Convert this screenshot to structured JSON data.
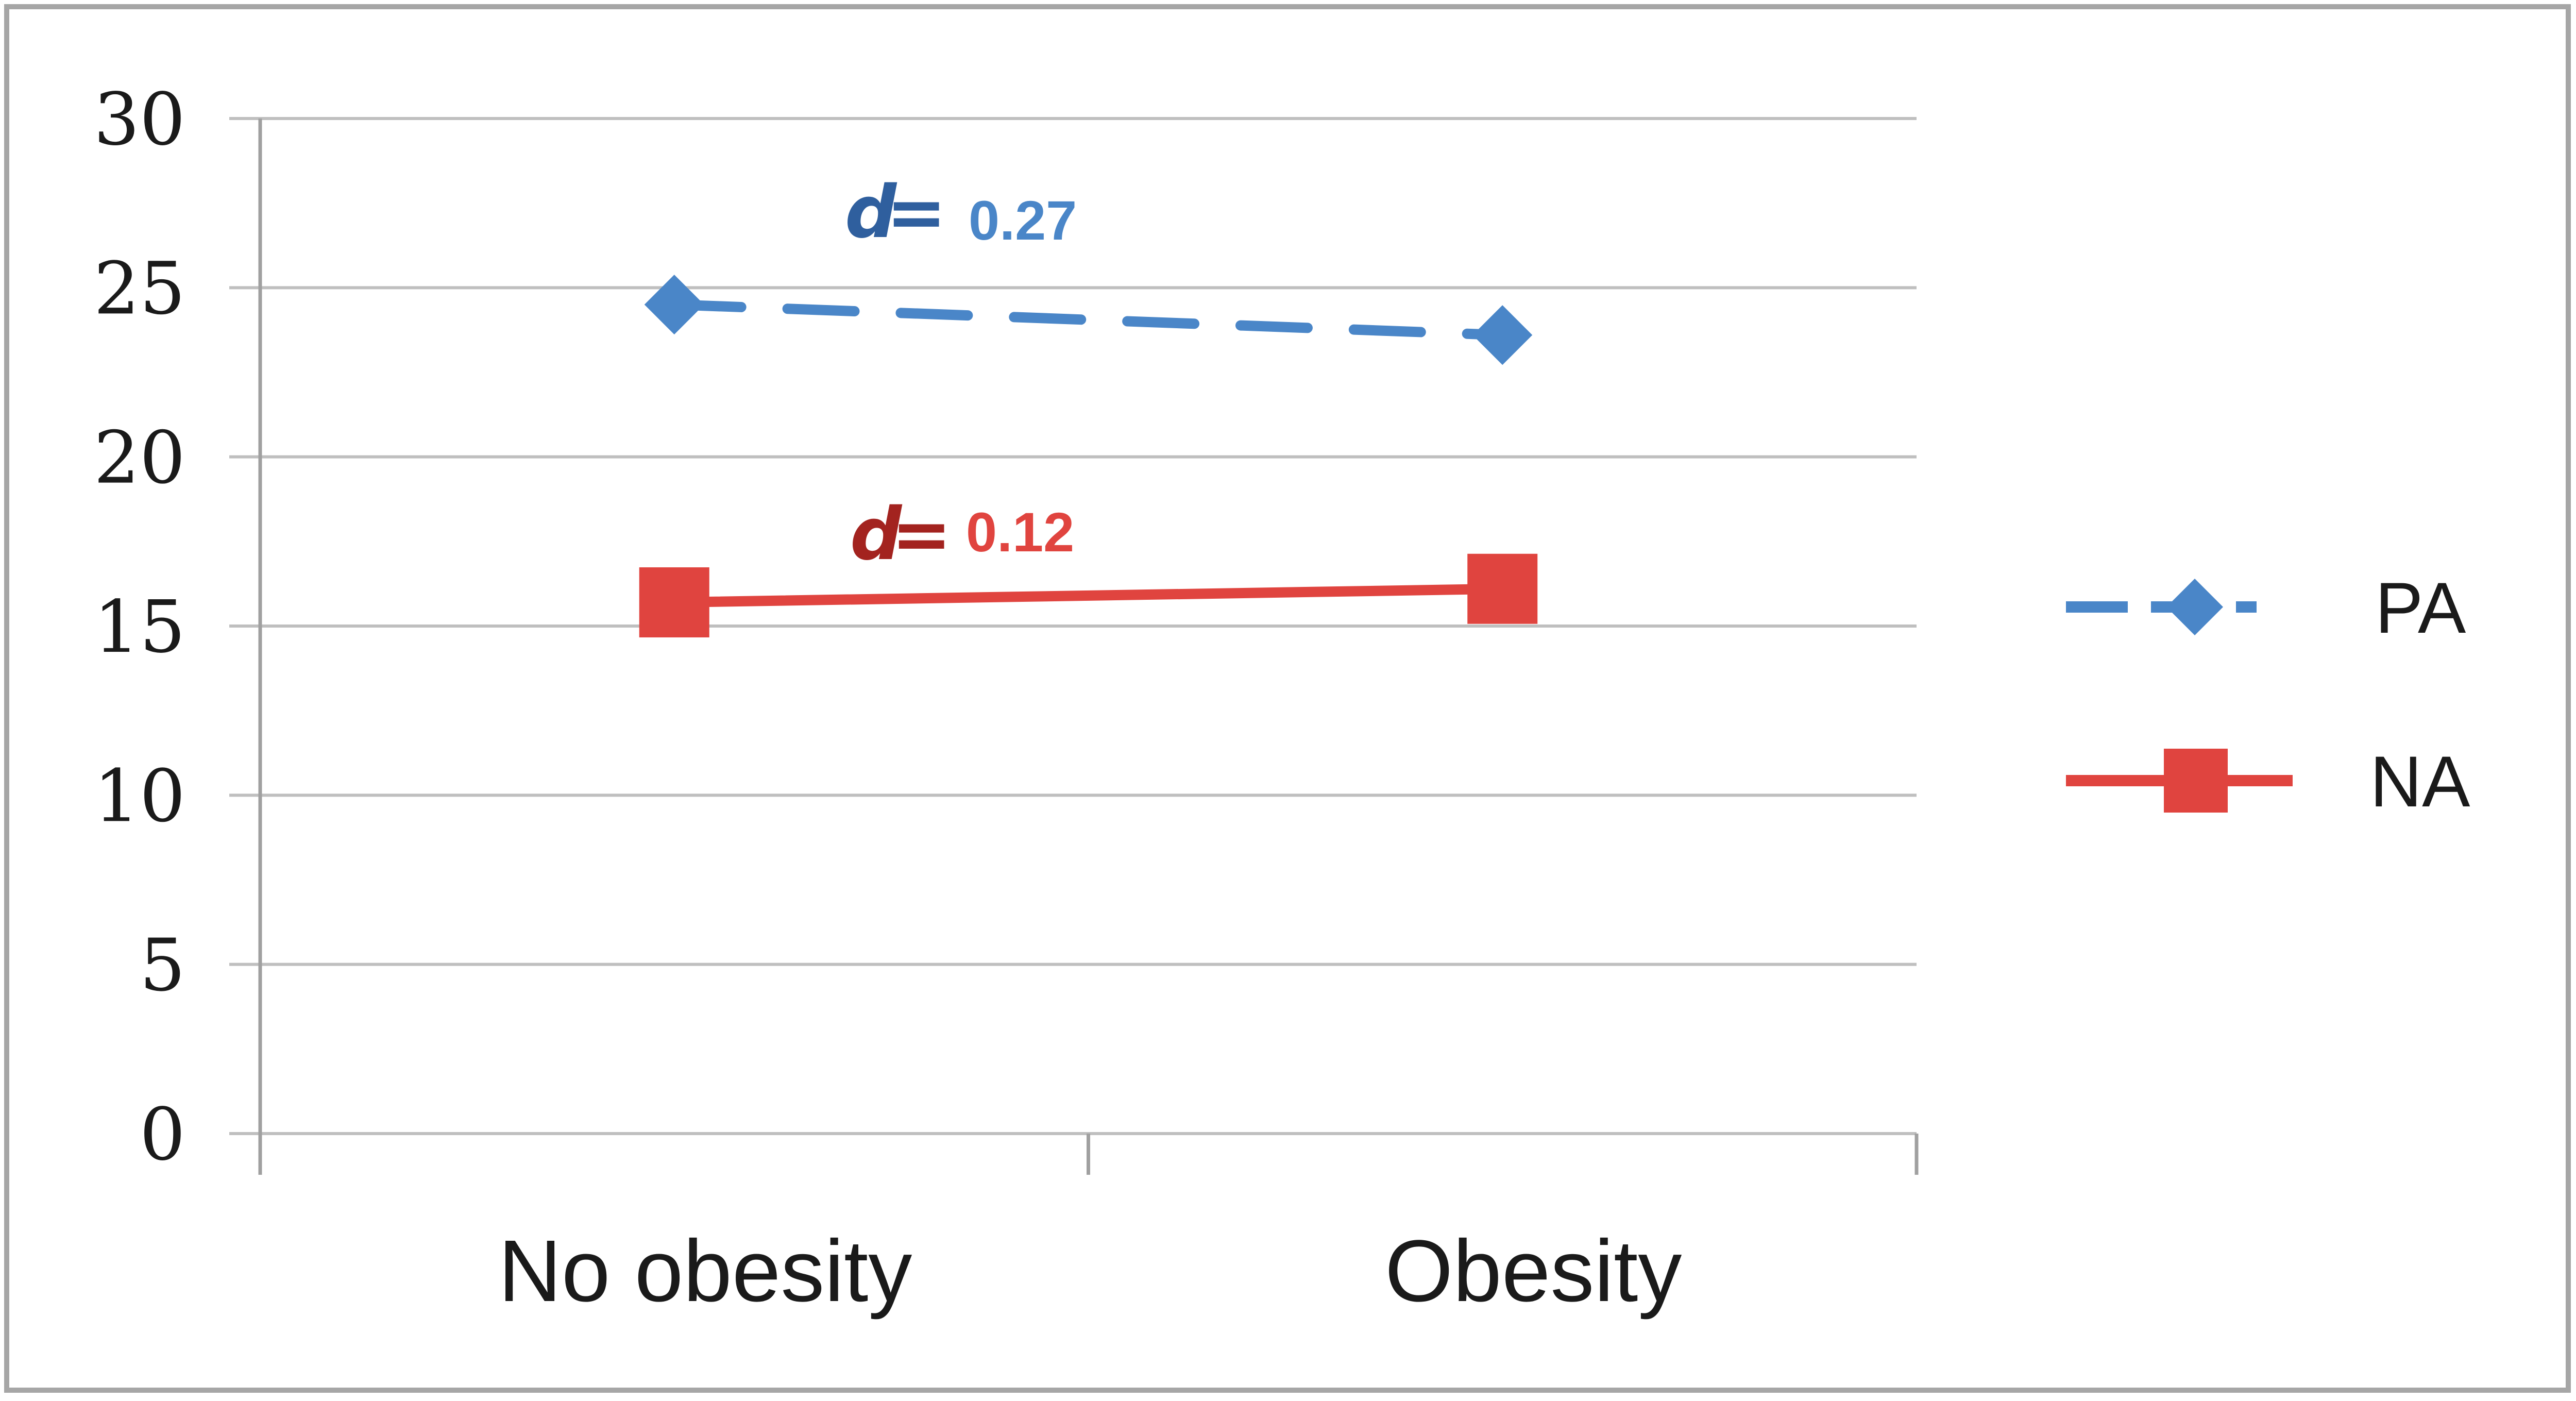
{
  "colors": {
    "pa": "#4a86c8",
    "na": "#e0443f",
    "grid": "#bfbfbf",
    "axis": "#a0a0a0",
    "frame": "#a6a6a6"
  },
  "chart_data": {
    "type": "line",
    "categories": [
      "No obesity",
      "Obesity"
    ],
    "series": [
      {
        "name": "PA",
        "values": [
          24.5,
          23.6
        ],
        "style": "dashed",
        "marker": "diamond",
        "color": "#4a86c8"
      },
      {
        "name": "NA",
        "values": [
          15.7,
          16.1
        ],
        "style": "solid",
        "marker": "square",
        "color": "#e0443f"
      }
    ],
    "ylim": [
      0,
      30
    ],
    "yticks": [
      "0",
      "5",
      "10",
      "15",
      "20",
      "25",
      "30"
    ],
    "grid": true,
    "legend_position": "right",
    "annotations": [
      {
        "series": "PA",
        "d_symbol": "d",
        "equals": "=",
        "value": "0.27"
      },
      {
        "series": "NA",
        "d_symbol": "d",
        "equals": "=",
        "value": "0.12"
      }
    ]
  }
}
